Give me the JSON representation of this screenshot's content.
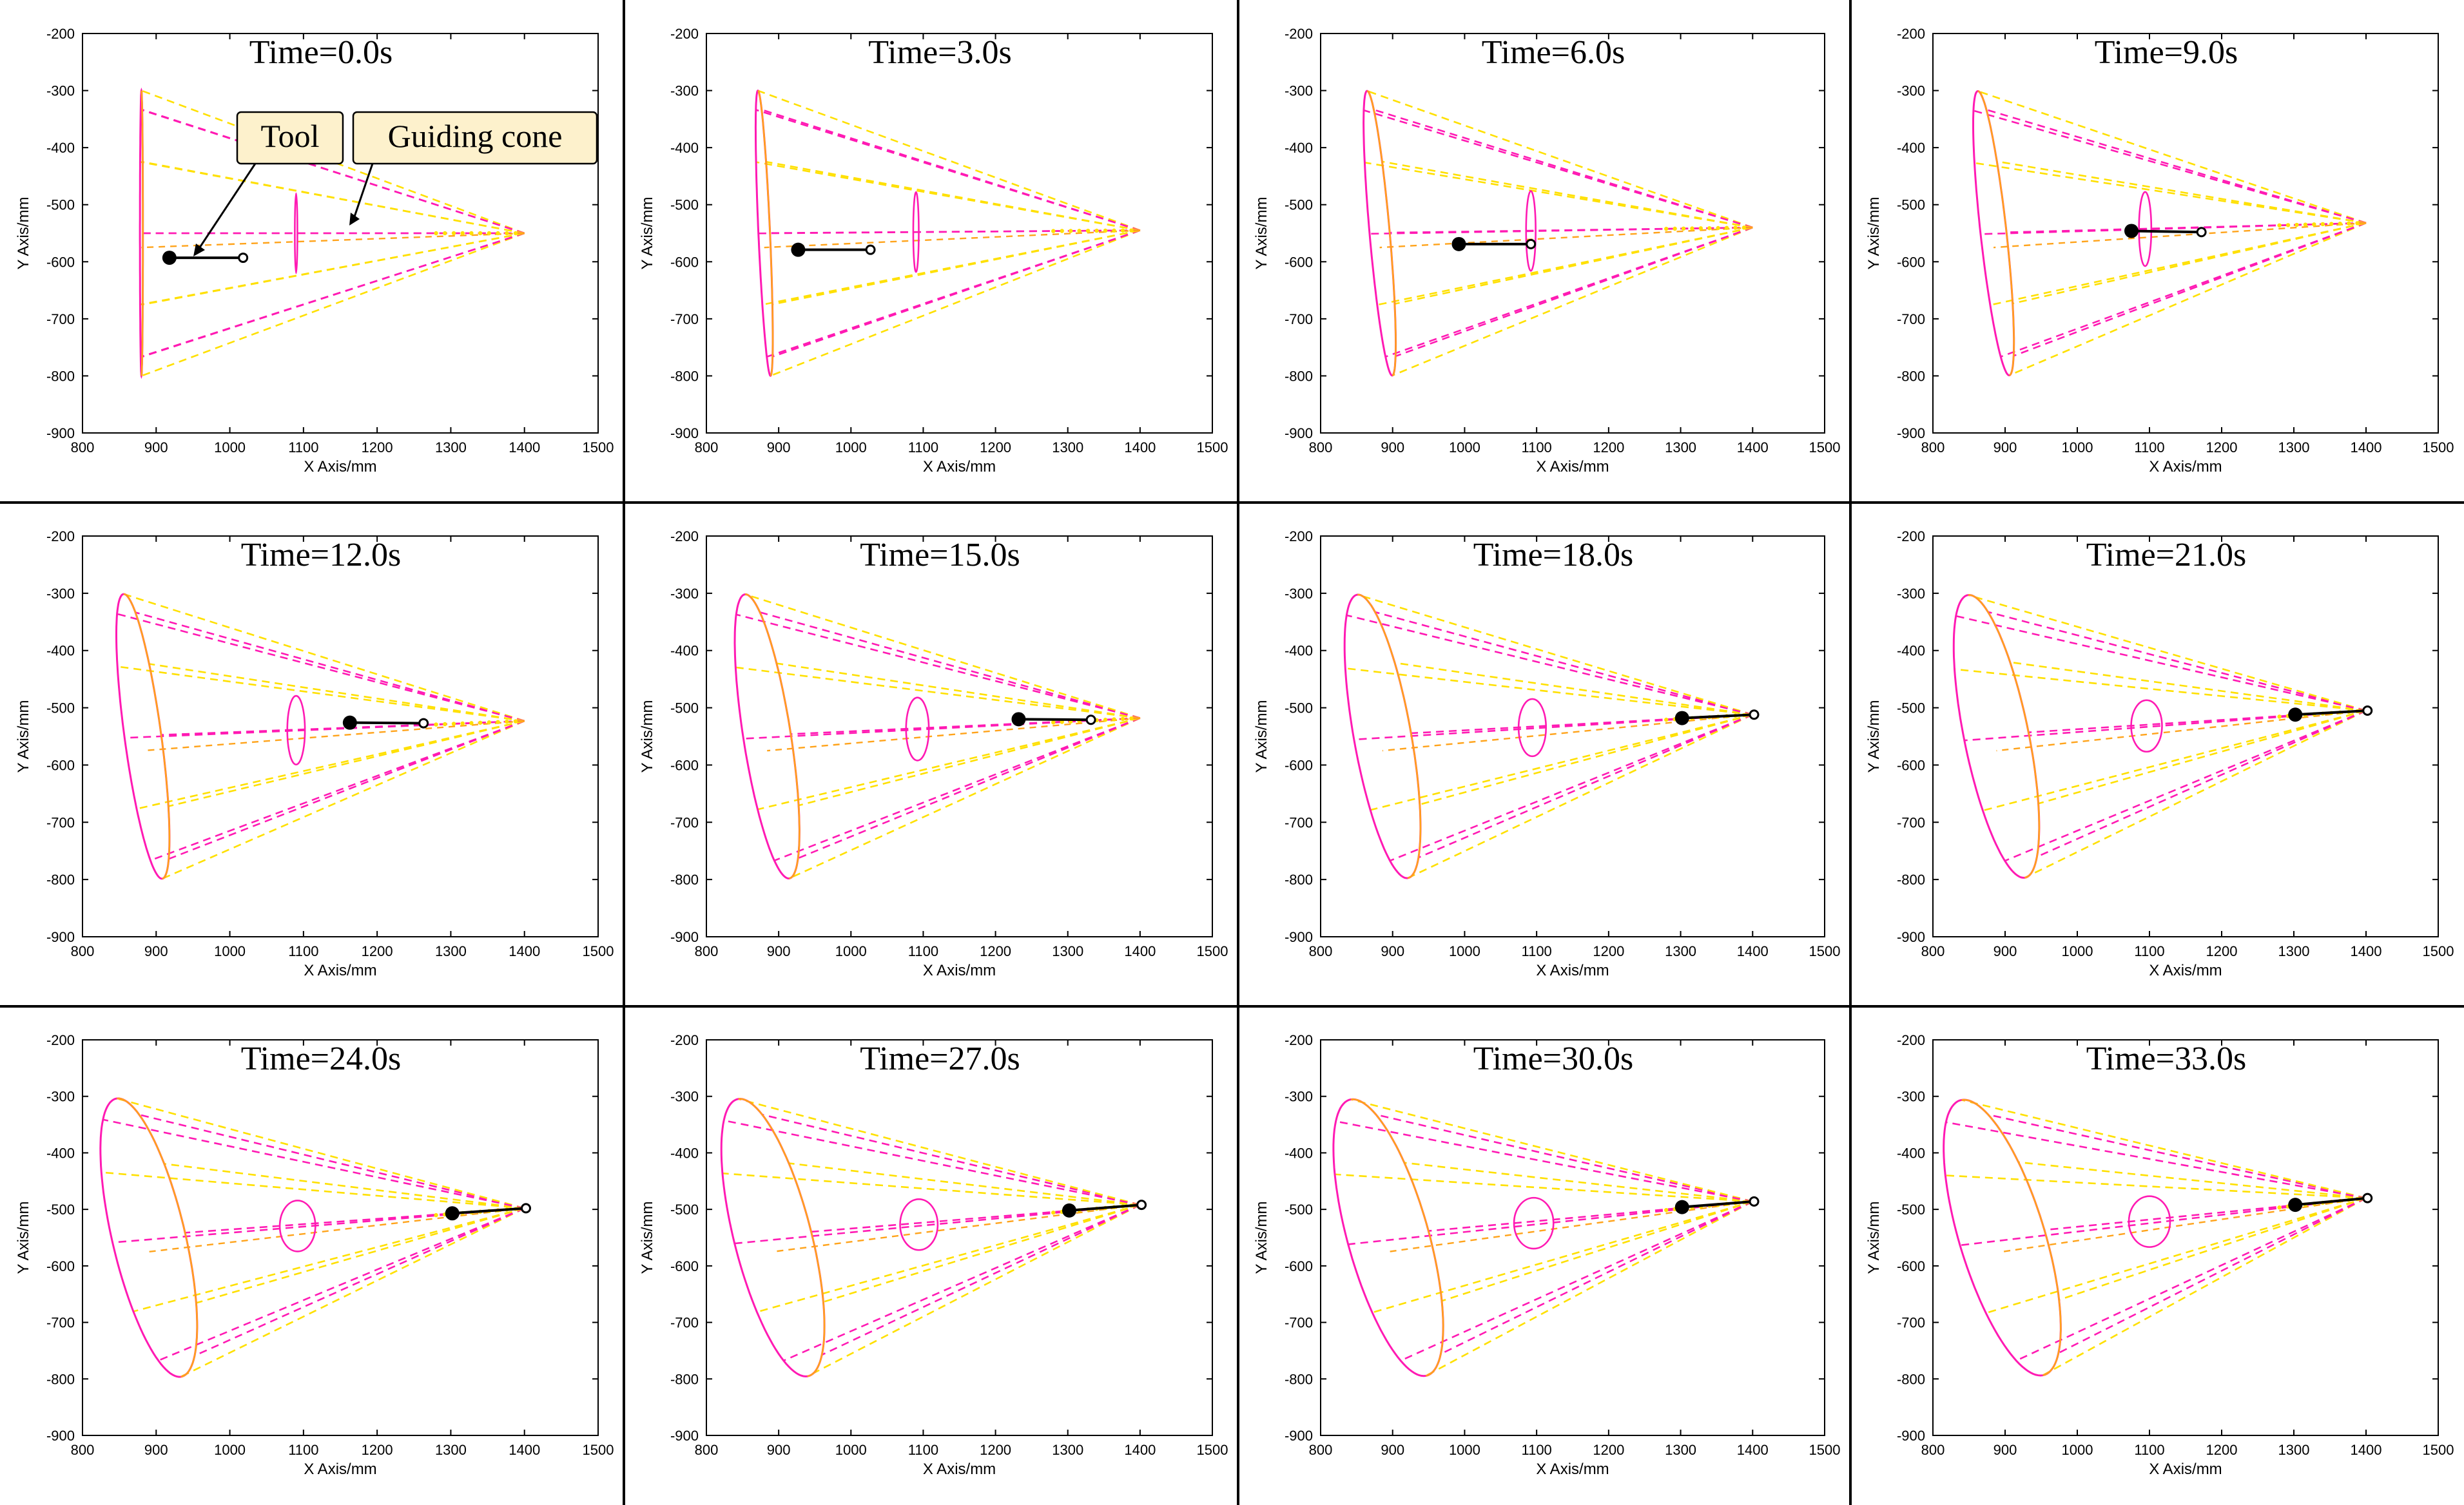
{
  "figure": {
    "description_free": true,
    "rows": 3,
    "cols": 4,
    "colors": {
      "magenta": "#ff1ab3",
      "yellow": "#ffe000",
      "orange": "#ffa31a",
      "tool": "#000000",
      "grid_divider": "#000000",
      "callout_fill": "#fdf1cc"
    },
    "axes_common": {
      "xlabel": "X Axis/mm",
      "ylabel": "Y Axis/mm",
      "xlim": [
        800,
        1500
      ],
      "ylim": [
        -900,
        -200
      ],
      "xticks": [
        "800",
        "900",
        "1000",
        "1100",
        "1200",
        "1300",
        "1400",
        "1500"
      ],
      "yticks": [
        "-200",
        "-300",
        "-400",
        "-500",
        "-600",
        "-700",
        "-800",
        "-900"
      ]
    },
    "callouts": [
      {
        "label": "Tool"
      },
      {
        "label": "Guiding cone"
      }
    ]
  },
  "chart_data": [
    {
      "type": "line",
      "panel": 1,
      "title": "Time=0.0s",
      "xlabel": "X Axis/mm",
      "ylabel": "Y Axis/mm",
      "xlim": [
        800,
        1500
      ],
      "ylim": [
        -900,
        -200
      ],
      "cone": {
        "apex": [
          1400,
          -550
        ],
        "base_center": [
          880,
          -550
        ],
        "ry": 250,
        "rx": 2,
        "rotation": 0,
        "mid_x": 1090,
        "mid_ry": 70
      },
      "tool": {
        "head": [
          918,
          -593
        ],
        "tail": [
          1018,
          -593
        ]
      }
    },
    {
      "type": "line",
      "panel": 2,
      "title": "Time=3.0s",
      "xlabel": "X Axis/mm",
      "ylabel": "Y Axis/mm",
      "xlim": [
        800,
        1500
      ],
      "ylim": [
        -900,
        -200
      ],
      "cone": {
        "apex": [
          1400,
          -545
        ],
        "base_center": [
          880,
          -550
        ],
        "ry": 250,
        "rx": 8,
        "rotation": 2,
        "mid_x": 1090,
        "mid_ry": 70
      },
      "tool": {
        "head": [
          927,
          -579
        ],
        "tail": [
          1027,
          -579
        ]
      }
    },
    {
      "type": "line",
      "panel": 3,
      "title": "Time=6.0s",
      "xlabel": "X Axis/mm",
      "ylabel": "Y Axis/mm",
      "xlim": [
        800,
        1500
      ],
      "ylim": [
        -900,
        -200
      ],
      "cone": {
        "apex": [
          1400,
          -540
        ],
        "base_center": [
          882,
          -550
        ],
        "ry": 250,
        "rx": 14,
        "rotation": 4,
        "mid_x": 1092,
        "mid_ry": 70
      },
      "tool": {
        "head": [
          992,
          -569
        ],
        "tail": [
          1092,
          -569
        ]
      }
    },
    {
      "type": "line",
      "panel": 4,
      "title": "Time=9.0s",
      "xlabel": "X Axis/mm",
      "ylabel": "Y Axis/mm",
      "xlim": [
        800,
        1500
      ],
      "ylim": [
        -900,
        -200
      ],
      "cone": {
        "apex": [
          1400,
          -532
        ],
        "base_center": [
          884,
          -550
        ],
        "ry": 250,
        "rx": 18,
        "rotation": 5,
        "mid_x": 1094,
        "mid_ry": 65
      },
      "tool": {
        "head": [
          1075,
          -546
        ],
        "tail": [
          1172,
          -548
        ]
      }
    },
    {
      "type": "line",
      "panel": 5,
      "title": "Time=12.0s",
      "xlabel": "X Axis/mm",
      "ylabel": "Y Axis/mm",
      "xlim": [
        800,
        1500
      ],
      "ylim": [
        -900,
        -200
      ],
      "cone": {
        "apex": [
          1400,
          -523
        ],
        "base_center": [
          882,
          -550
        ],
        "ry": 250,
        "rx": 25,
        "rotation": 6,
        "mid_x": 1090,
        "mid_ry": 60
      },
      "tool": {
        "head": [
          1163,
          -526
        ],
        "tail": [
          1263,
          -527
        ]
      }
    },
    {
      "type": "line",
      "panel": 6,
      "title": "Time=15.0s",
      "xlabel": "X Axis/mm",
      "ylabel": "Y Axis/mm",
      "xlim": [
        800,
        1500
      ],
      "ylim": [
        -900,
        -200
      ],
      "cone": {
        "apex": [
          1400,
          -518
        ],
        "base_center": [
          884,
          -550
        ],
        "ry": 250,
        "rx": 33,
        "rotation": 7,
        "mid_x": 1092,
        "mid_ry": 55
      },
      "tool": {
        "head": [
          1232,
          -520
        ],
        "tail": [
          1332,
          -521
        ]
      }
    },
    {
      "type": "line",
      "panel": 7,
      "title": "Time=18.0s",
      "xlabel": "X Axis/mm",
      "ylabel": "Y Axis/mm",
      "xlim": [
        800,
        1500
      ],
      "ylim": [
        -900,
        -200
      ],
      "cone": {
        "apex": [
          1400,
          -512
        ],
        "base_center": [
          886,
          -550
        ],
        "ry": 250,
        "rx": 40,
        "rotation": 8,
        "mid_x": 1094,
        "mid_ry": 50
      },
      "tool": {
        "head": [
          1302,
          -518
        ],
        "tail": [
          1402,
          -512
        ]
      }
    },
    {
      "type": "line",
      "panel": 8,
      "title": "Time=21.0s",
      "xlabel": "X Axis/mm",
      "ylabel": "Y Axis/mm",
      "xlim": [
        800,
        1500
      ],
      "ylim": [
        -900,
        -200
      ],
      "cone": {
        "apex": [
          1400,
          -505
        ],
        "base_center": [
          888,
          -550
        ],
        "ry": 250,
        "rx": 45,
        "rotation": 9,
        "mid_x": 1096,
        "mid_ry": 45
      },
      "tool": {
        "head": [
          1302,
          -512
        ],
        "tail": [
          1402,
          -505
        ]
      }
    },
    {
      "type": "line",
      "panel": 9,
      "title": "Time=24.0s",
      "xlabel": "X Axis/mm",
      "ylabel": "Y Axis/mm",
      "xlim": [
        800,
        1500
      ],
      "ylim": [
        -900,
        -200
      ],
      "cone": {
        "apex": [
          1400,
          -498
        ],
        "base_center": [
          890,
          -550
        ],
        "ry": 250,
        "rx": 50,
        "rotation": 10,
        "mid_x": 1092,
        "mid_ry": 45
      },
      "tool": {
        "head": [
          1302,
          -507
        ],
        "tail": [
          1402,
          -498
        ]
      }
    },
    {
      "type": "line",
      "panel": 10,
      "title": "Time=27.0s",
      "xlabel": "X Axis/mm",
      "ylabel": "Y Axis/mm",
      "xlim": [
        800,
        1500
      ],
      "ylim": [
        -900,
        -200
      ],
      "cone": {
        "apex": [
          1400,
          -492
        ],
        "base_center": [
          892,
          -550
        ],
        "ry": 250,
        "rx": 54,
        "rotation": 11,
        "mid_x": 1094,
        "mid_ry": 45
      },
      "tool": {
        "head": [
          1302,
          -502
        ],
        "tail": [
          1402,
          -492
        ]
      }
    },
    {
      "type": "line",
      "panel": 11,
      "title": "Time=30.0s",
      "xlabel": "X Axis/mm",
      "ylabel": "Y Axis/mm",
      "xlim": [
        800,
        1500
      ],
      "ylim": [
        -900,
        -200
      ],
      "cone": {
        "apex": [
          1400,
          -486
        ],
        "base_center": [
          894,
          -550
        ],
        "ry": 250,
        "rx": 57,
        "rotation": 12,
        "mid_x": 1096,
        "mid_ry": 45
      },
      "tool": {
        "head": [
          1302,
          -496
        ],
        "tail": [
          1402,
          -486
        ]
      }
    },
    {
      "type": "line",
      "panel": 12,
      "title": "Time=33.0s",
      "xlabel": "X Axis/mm",
      "ylabel": "Y Axis/mm",
      "xlim": [
        800,
        1500
      ],
      "ylim": [
        -900,
        -200
      ],
      "cone": {
        "apex": [
          1400,
          -480
        ],
        "base_center": [
          896,
          -550
        ],
        "ry": 250,
        "rx": 60,
        "rotation": 13,
        "mid_x": 1100,
        "mid_ry": 45
      },
      "tool": {
        "head": [
          1302,
          -492
        ],
        "tail": [
          1402,
          -480
        ]
      }
    }
  ]
}
